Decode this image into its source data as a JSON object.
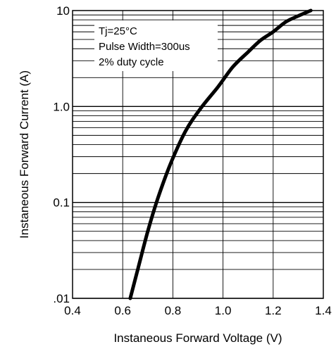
{
  "chart_data": {
    "type": "line",
    "title": "",
    "xlabel": "Instaneous Forward Voltage (V)",
    "ylabel": "Instaneous Forward Current (A)",
    "x_scale": "linear",
    "y_scale": "log",
    "xlim": [
      0.4,
      1.4
    ],
    "ylim": [
      0.01,
      10
    ],
    "x_ticks": [
      "0.4",
      "0.6",
      "0.8",
      "1.0",
      "1.2",
      "1.4"
    ],
    "y_ticks": [
      {
        "value": 0.01,
        "label": ".01"
      },
      {
        "value": 0.1,
        "label": "0.1"
      },
      {
        "value": 1,
        "label": "1.0"
      },
      {
        "value": 10,
        "label": "10"
      }
    ],
    "grid": true,
    "annotations": [
      "Tj=25°C",
      "Pulse Width=300us",
      "2% duty cycle"
    ],
    "series": [
      {
        "x": [
          0.63,
          0.66,
          0.7,
          0.74,
          0.79,
          0.85,
          0.91,
          0.98,
          1.04,
          1.1,
          1.15,
          1.2,
          1.25,
          1.3,
          1.35
        ],
        "y": [
          0.01,
          0.02,
          0.05,
          0.11,
          0.25,
          0.55,
          0.95,
          1.6,
          2.6,
          3.7,
          4.9,
          6.0,
          7.6,
          8.8,
          10
        ]
      }
    ],
    "line_color": "#000000"
  }
}
